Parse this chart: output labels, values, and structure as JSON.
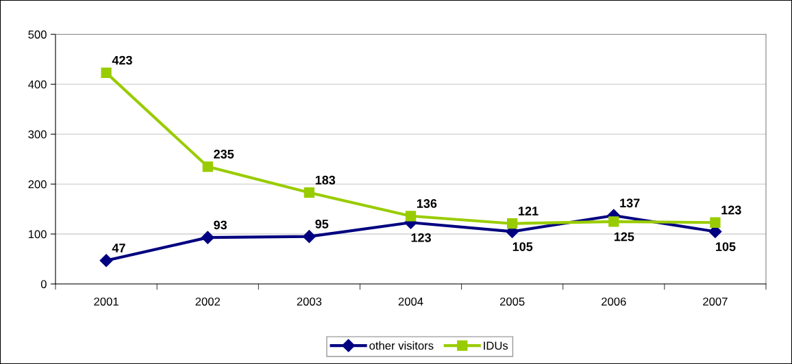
{
  "chart_data": {
    "type": "line",
    "categories": [
      "2001",
      "2002",
      "2003",
      "2004",
      "2005",
      "2006",
      "2007"
    ],
    "series": [
      {
        "name": "other visitors",
        "color": "#000080",
        "marker": "diamond",
        "values": [
          47,
          93,
          95,
          123,
          105,
          137,
          105
        ]
      },
      {
        "name": "IDUs",
        "color": "#99cc00",
        "marker": "square",
        "values": [
          423,
          235,
          183,
          136,
          121,
          125,
          123
        ]
      }
    ],
    "ylim": [
      0,
      500
    ],
    "yticks": [
      0,
      100,
      200,
      300,
      400,
      500
    ],
    "grid": "y",
    "legend": "bottom",
    "data_labels": true,
    "line_style": "solid"
  }
}
